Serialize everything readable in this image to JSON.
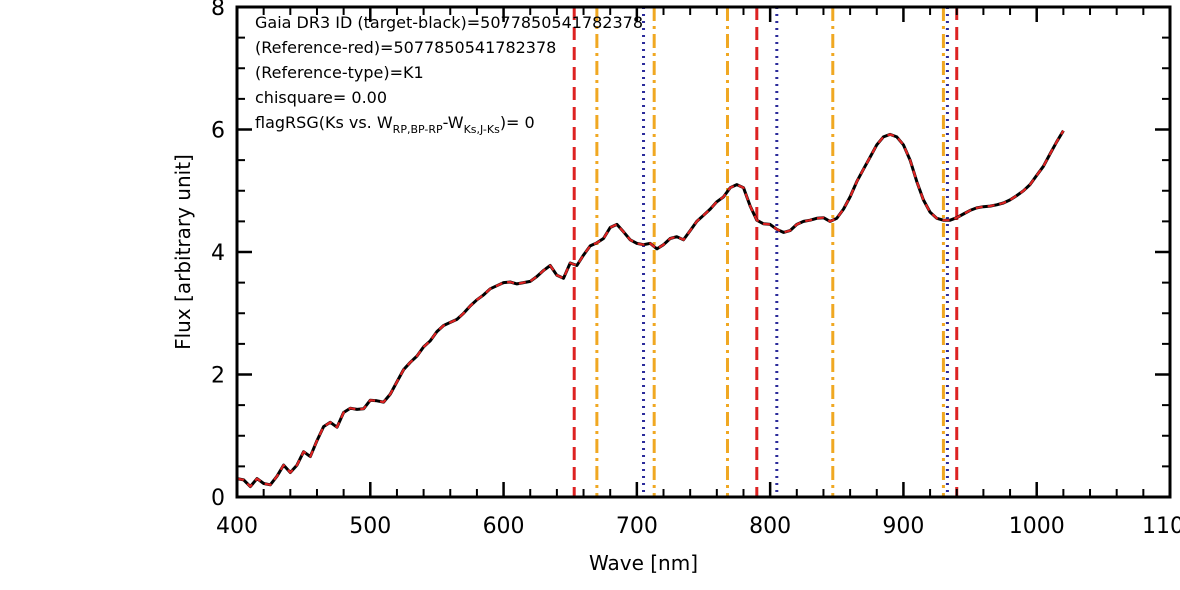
{
  "chart_data": {
    "type": "line",
    "title": "",
    "xlabel": "Wave [nm]",
    "ylabel": "Flux [arbitrary unit]",
    "xlim": [
      400,
      1100
    ],
    "ylim": [
      0,
      8
    ],
    "x_ticks": [
      400,
      500,
      600,
      700,
      800,
      900,
      1000,
      1100
    ],
    "x_tick_labels": [
      "400",
      "500",
      "600",
      "700",
      "800",
      "900",
      "1000",
      "1100"
    ],
    "y_ticks": [
      0,
      2,
      4,
      6,
      8
    ],
    "y_tick_labels": [
      "0",
      "2",
      "4",
      "6",
      "8"
    ],
    "grid": false,
    "annotations": {
      "line1": "Gaia DR3 ID (target-black)=5077850541782378",
      "line2": "(Reference-red)=5077850541782378",
      "line3": "(Reference-type)=K1",
      "line4": "chisquare= 0.00",
      "line5_prefix": "flagRSG(Ks vs. W",
      "line5_sub1": "RP,BP-RP",
      "line5_dash": "-W",
      "line5_sub2": "Ks,J-Ks",
      "line5_suffix": ")= 0"
    },
    "series": [
      {
        "role": "target",
        "color": "#000000",
        "style": "solid",
        "points": [
          [
            400,
            0.3
          ],
          [
            405,
            0.28
          ],
          [
            410,
            0.17
          ],
          [
            415,
            0.3
          ],
          [
            420,
            0.22
          ],
          [
            425,
            0.2
          ],
          [
            430,
            0.34
          ],
          [
            435,
            0.52
          ],
          [
            440,
            0.4
          ],
          [
            445,
            0.52
          ],
          [
            450,
            0.74
          ],
          [
            455,
            0.66
          ],
          [
            460,
            0.92
          ],
          [
            465,
            1.15
          ],
          [
            470,
            1.22
          ],
          [
            475,
            1.14
          ],
          [
            480,
            1.38
          ],
          [
            485,
            1.45
          ],
          [
            490,
            1.43
          ],
          [
            495,
            1.44
          ],
          [
            500,
            1.58
          ],
          [
            505,
            1.57
          ],
          [
            510,
            1.55
          ],
          [
            515,
            1.68
          ],
          [
            520,
            1.88
          ],
          [
            525,
            2.08
          ],
          [
            530,
            2.2
          ],
          [
            535,
            2.3
          ],
          [
            540,
            2.45
          ],
          [
            545,
            2.55
          ],
          [
            550,
            2.7
          ],
          [
            555,
            2.8
          ],
          [
            560,
            2.85
          ],
          [
            565,
            2.9
          ],
          [
            570,
            3.0
          ],
          [
            575,
            3.12
          ],
          [
            580,
            3.22
          ],
          [
            585,
            3.3
          ],
          [
            590,
            3.4
          ],
          [
            595,
            3.45
          ],
          [
            600,
            3.5
          ],
          [
            605,
            3.51
          ],
          [
            610,
            3.48
          ],
          [
            615,
            3.5
          ],
          [
            620,
            3.52
          ],
          [
            625,
            3.6
          ],
          [
            630,
            3.7
          ],
          [
            635,
            3.78
          ],
          [
            640,
            3.62
          ],
          [
            645,
            3.57
          ],
          [
            650,
            3.82
          ],
          [
            655,
            3.78
          ],
          [
            660,
            3.95
          ],
          [
            665,
            4.1
          ],
          [
            670,
            4.15
          ],
          [
            675,
            4.22
          ],
          [
            680,
            4.4
          ],
          [
            685,
            4.45
          ],
          [
            690,
            4.33
          ],
          [
            695,
            4.2
          ],
          [
            700,
            4.14
          ],
          [
            705,
            4.12
          ],
          [
            710,
            4.14
          ],
          [
            715,
            4.05
          ],
          [
            720,
            4.12
          ],
          [
            725,
            4.22
          ],
          [
            730,
            4.25
          ],
          [
            735,
            4.2
          ],
          [
            740,
            4.35
          ],
          [
            745,
            4.5
          ],
          [
            750,
            4.6
          ],
          [
            755,
            4.7
          ],
          [
            760,
            4.82
          ],
          [
            765,
            4.9
          ],
          [
            770,
            5.05
          ],
          [
            775,
            5.1
          ],
          [
            780,
            5.05
          ],
          [
            785,
            4.75
          ],
          [
            790,
            4.52
          ],
          [
            795,
            4.46
          ],
          [
            800,
            4.45
          ],
          [
            805,
            4.37
          ],
          [
            810,
            4.32
          ],
          [
            815,
            4.35
          ],
          [
            820,
            4.45
          ],
          [
            825,
            4.5
          ],
          [
            830,
            4.52
          ],
          [
            835,
            4.55
          ],
          [
            840,
            4.56
          ],
          [
            845,
            4.5
          ],
          [
            850,
            4.55
          ],
          [
            855,
            4.7
          ],
          [
            860,
            4.9
          ],
          [
            865,
            5.15
          ],
          [
            870,
            5.35
          ],
          [
            875,
            5.55
          ],
          [
            880,
            5.75
          ],
          [
            885,
            5.88
          ],
          [
            890,
            5.92
          ],
          [
            895,
            5.88
          ],
          [
            900,
            5.75
          ],
          [
            905,
            5.5
          ],
          [
            910,
            5.15
          ],
          [
            915,
            4.85
          ],
          [
            920,
            4.65
          ],
          [
            925,
            4.55
          ],
          [
            930,
            4.52
          ],
          [
            935,
            4.52
          ],
          [
            940,
            4.56
          ],
          [
            945,
            4.62
          ],
          [
            950,
            4.68
          ],
          [
            955,
            4.72
          ],
          [
            960,
            4.74
          ],
          [
            965,
            4.75
          ],
          [
            970,
            4.77
          ],
          [
            975,
            4.8
          ],
          [
            980,
            4.85
          ],
          [
            985,
            4.92
          ],
          [
            990,
            5.0
          ],
          [
            995,
            5.1
          ],
          [
            1000,
            5.25
          ],
          [
            1005,
            5.4
          ],
          [
            1010,
            5.6
          ],
          [
            1015,
            5.8
          ],
          [
            1020,
            5.98
          ]
        ]
      },
      {
        "role": "reference",
        "color": "#dd2222",
        "style": "dashed"
      }
    ],
    "vlines": [
      {
        "x": 653,
        "color": "#dd2222",
        "style": "dashed"
      },
      {
        "x": 670,
        "color": "#f0a822",
        "style": "dashdot"
      },
      {
        "x": 705,
        "color": "#2b2b9a",
        "style": "dotted"
      },
      {
        "x": 713,
        "color": "#f0a822",
        "style": "dashdot"
      },
      {
        "x": 768,
        "color": "#f0a822",
        "style": "dashdot"
      },
      {
        "x": 790,
        "color": "#dd2222",
        "style": "dashed"
      },
      {
        "x": 805,
        "color": "#2b2b9a",
        "style": "dotted"
      },
      {
        "x": 847,
        "color": "#f0a822",
        "style": "dashdot"
      },
      {
        "x": 930,
        "color": "#f0a822",
        "style": "dashdot"
      },
      {
        "x": 933,
        "color": "#2b2b9a",
        "style": "dotted"
      },
      {
        "x": 940,
        "color": "#dd2222",
        "style": "dashed"
      }
    ]
  }
}
